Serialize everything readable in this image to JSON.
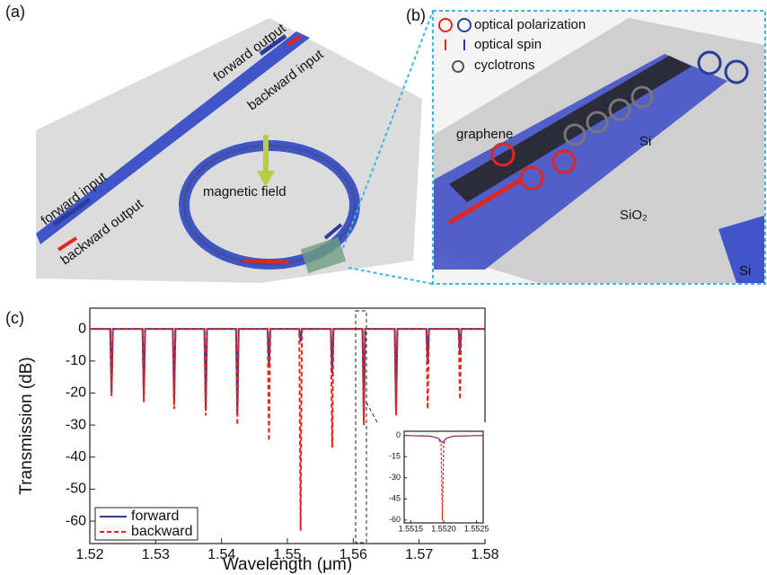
{
  "panel_a": {
    "label": "(a)",
    "forward_output": "forward output",
    "backward_input": "backward input",
    "forward_input": "forward input",
    "backward_output": "backward output",
    "magnetic_field": "magnetic field"
  },
  "panel_b": {
    "label": "(b)",
    "legend": [
      "optical polarization",
      "optical spin",
      "cyclotrons"
    ],
    "graphene": "graphene",
    "si_top": "Si",
    "sio2": "SiO₂",
    "si_bottom": "Si"
  },
  "panel_c": {
    "label": "(c)"
  },
  "chart_data": [
    {
      "type": "line",
      "xlabel": "Wavelength (μm)",
      "ylabel": "Transmission (dB)",
      "x": [
        1.52,
        1.5231,
        1.5233,
        1.5235,
        1.528,
        1.5282,
        1.5284,
        1.5326,
        1.5328,
        1.533,
        1.5374,
        1.5376,
        1.5378,
        1.5422,
        1.5424,
        1.5426,
        1.547,
        1.5472,
        1.5474,
        1.5518,
        1.552,
        1.5522,
        1.5566,
        1.5568,
        1.557,
        1.5614,
        1.5616,
        1.5618,
        1.5663,
        1.5665,
        1.5667,
        1.5711,
        1.5713,
        1.5715,
        1.576,
        1.5762,
        1.5764,
        1.58
      ],
      "series": [
        {
          "name": "forward",
          "color": "#2a3c9e",
          "dashed": false,
          "values": [
            0,
            0,
            -20,
            0,
            0,
            -21,
            0,
            0,
            -23,
            0,
            0,
            -25,
            0,
            0,
            -27,
            0,
            0,
            -12,
            0,
            0,
            -4,
            0,
            0,
            -14,
            0,
            0,
            -28,
            0,
            0,
            -26,
            0,
            0,
            -10,
            0,
            0,
            -7,
            0,
            0
          ]
        },
        {
          "name": "backward",
          "color": "#e3261c",
          "dashed": true,
          "values": [
            0,
            0,
            -21,
            0,
            0,
            -23,
            0,
            0,
            -25,
            0,
            0,
            -27,
            0,
            0,
            -30,
            0,
            0,
            -35,
            0,
            0,
            -63,
            0,
            0,
            -37,
            0,
            0,
            -30,
            0,
            0,
            -27,
            0,
            0,
            -25,
            0,
            0,
            -22,
            0,
            0
          ]
        }
      ],
      "xlim": [
        1.52,
        1.58
      ],
      "xticks": [
        1.52,
        1.53,
        1.54,
        1.55,
        1.56,
        1.57,
        1.58
      ],
      "ylim": [
        -67,
        6.5
      ],
      "yticks": [
        0,
        -10,
        -20,
        -30,
        -40,
        -50,
        -60
      ],
      "legend": "lower left"
    },
    {
      "type": "line",
      "x": [
        1.5514,
        1.5518,
        1.55192,
        1.55196,
        1.55198,
        1.552,
        1.55204,
        1.55215,
        1.5526
      ],
      "series": [
        {
          "name": "forward",
          "color": "#2a3c9e",
          "dashed": false,
          "values": [
            0,
            -0.5,
            -2,
            -4,
            -5,
            -4,
            -2,
            -0.5,
            0
          ]
        },
        {
          "name": "backward",
          "color": "#e3261c",
          "dashed": true,
          "values": [
            0,
            -0.5,
            -2,
            -6,
            -60,
            -6,
            -2,
            -0.5,
            0
          ]
        }
      ],
      "xlim": [
        1.5514,
        1.5526
      ],
      "xticks": [
        1.5515,
        {
          "value": 1.552,
          "label": "1.5520"
        },
        1.5525
      ],
      "ylim": [
        -62,
        3
      ],
      "yticks": [
        0,
        -15,
        -30,
        -45,
        -60
      ]
    }
  ]
}
